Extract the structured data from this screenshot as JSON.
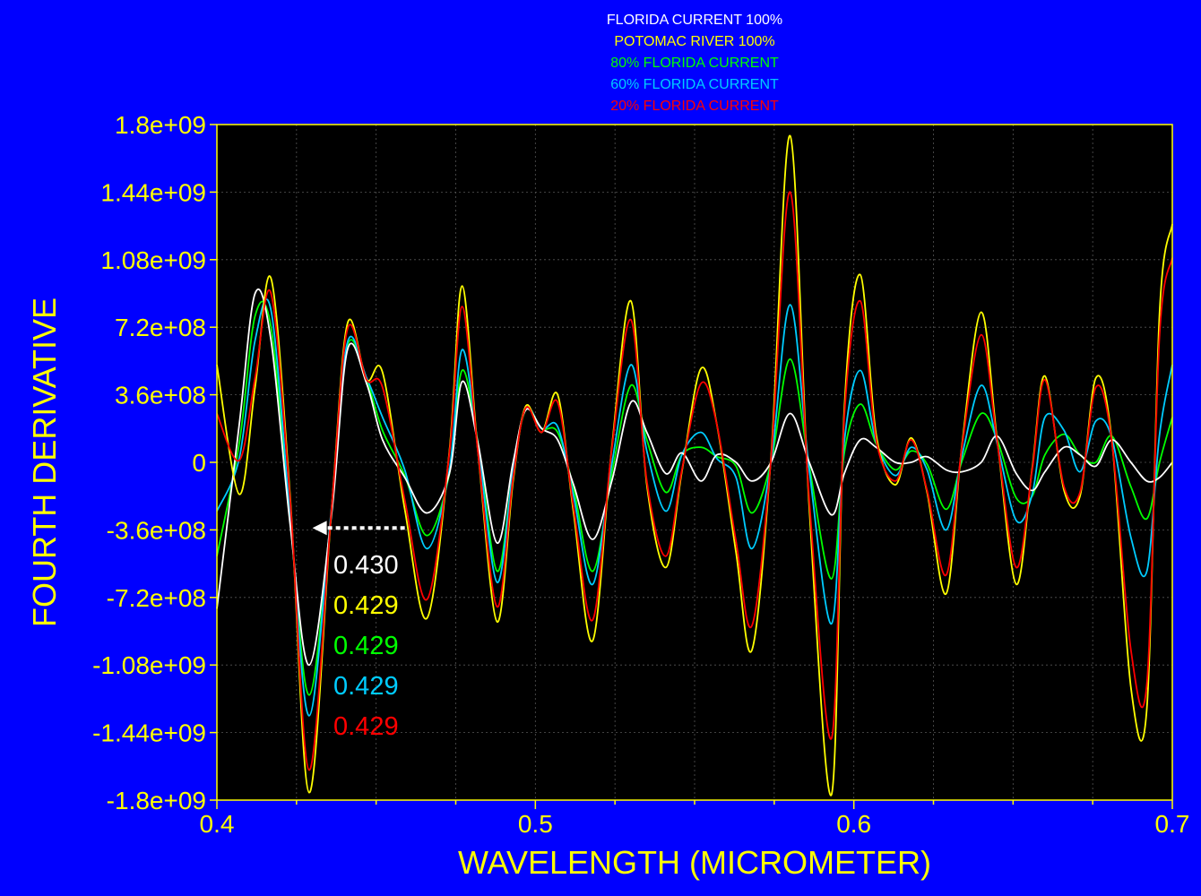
{
  "chart_data": {
    "type": "line",
    "title": "",
    "xlabel": "WAVELENGTH (MICROMETER)",
    "ylabel": "FOURTH DERIVATIVE",
    "xlim": [
      0.4,
      0.7
    ],
    "ylim": [
      -1800000000,
      1800000000
    ],
    "x_ticks": [
      0.4,
      0.5,
      0.6,
      0.7
    ],
    "x_tick_labels": [
      "0.4",
      "0.5",
      "0.6",
      "0.7"
    ],
    "y_ticks": [
      1800000000,
      1440000000,
      1080000000,
      720000000,
      360000000,
      0,
      -360000000,
      -720000000,
      -1080000000,
      -1440000000,
      -1800000000
    ],
    "y_tick_labels": [
      "1.8e+09",
      "1.44e+09",
      "1.08e+09",
      "7.2e+08",
      "3.6e+08",
      "0",
      "-3.6e+08",
      "-7.2e+08",
      "-1.08e+09",
      "-1.44e+09",
      "-1.8e+09"
    ],
    "grid": true,
    "legend_position": "top-center",
    "background": "#000000",
    "x": [
      0.4,
      0.407,
      0.412,
      0.417,
      0.423,
      0.429,
      0.436,
      0.441,
      0.447,
      0.452,
      0.459,
      0.466,
      0.473,
      0.477,
      0.482,
      0.488,
      0.493,
      0.497,
      0.502,
      0.507,
      0.512,
      0.518,
      0.524,
      0.53,
      0.535,
      0.541,
      0.546,
      0.552,
      0.557,
      0.563,
      0.568,
      0.574,
      0.58,
      0.586,
      0.593,
      0.597,
      0.602,
      0.607,
      0.613,
      0.618,
      0.623,
      0.629,
      0.634,
      0.64,
      0.645,
      0.651,
      0.656,
      0.66,
      0.666,
      0.671,
      0.676,
      0.681,
      0.687,
      0.692,
      0.696,
      0.7
    ],
    "series": [
      {
        "name": "FLORIDA CURRENT 100%",
        "color": "#ffffff",
        "values": [
          -780000000,
          200000000,
          900000000,
          650000000,
          -330000000,
          -1080000000,
          -280000000,
          600000000,
          420000000,
          120000000,
          -80000000,
          -270000000,
          -60000000,
          430000000,
          100000000,
          -430000000,
          0,
          280000000,
          180000000,
          120000000,
          -120000000,
          -410000000,
          -100000000,
          320000000,
          160000000,
          -60000000,
          50000000,
          -100000000,
          40000000,
          0,
          -100000000,
          0,
          260000000,
          0,
          -280000000,
          -60000000,
          120000000,
          80000000,
          0,
          0,
          30000000,
          -40000000,
          -50000000,
          0,
          140000000,
          -60000000,
          -150000000,
          -50000000,
          80000000,
          40000000,
          -20000000,
          120000000,
          0,
          -100000000,
          -80000000,
          0
        ]
      },
      {
        "name": "POTOMAC RIVER 100%",
        "color": "#ffff00",
        "values": [
          520000000,
          -170000000,
          400000000,
          980000000,
          -180000000,
          -1760000000,
          -250000000,
          740000000,
          440000000,
          480000000,
          -250000000,
          -830000000,
          60000000,
          940000000,
          50000000,
          -850000000,
          -100000000,
          300000000,
          160000000,
          360000000,
          -270000000,
          -950000000,
          80000000,
          860000000,
          -120000000,
          -560000000,
          -50000000,
          500000000,
          200000000,
          -480000000,
          -1000000000,
          30000000,
          1740000000,
          -240000000,
          -1770000000,
          280000000,
          1000000000,
          150000000,
          -120000000,
          130000000,
          -160000000,
          -700000000,
          100000000,
          800000000,
          120000000,
          -650000000,
          -30000000,
          460000000,
          -150000000,
          -180000000,
          450000000,
          120000000,
          -1200000000,
          -1310000000,
          800000000,
          1270000000
        ]
      },
      {
        "name": "80% FLORIDA CURRENT",
        "color": "#00ff00",
        "values": [
          -500000000,
          100000000,
          780000000,
          720000000,
          -300000000,
          -1240000000,
          -260000000,
          620000000,
          440000000,
          170000000,
          -70000000,
          -390000000,
          -60000000,
          490000000,
          100000000,
          -580000000,
          -40000000,
          280000000,
          180000000,
          160000000,
          -140000000,
          -580000000,
          -60000000,
          410000000,
          120000000,
          -160000000,
          40000000,
          80000000,
          30000000,
          -20000000,
          -270000000,
          0,
          550000000,
          -20000000,
          -620000000,
          50000000,
          310000000,
          100000000,
          -40000000,
          60000000,
          -10000000,
          -250000000,
          10000000,
          260000000,
          120000000,
          -190000000,
          -180000000,
          40000000,
          150000000,
          40000000,
          0,
          140000000,
          -130000000,
          -300000000,
          0,
          240000000
        ]
      },
      {
        "name": "60% FLORIDA CURRENT",
        "color": "#00ccff",
        "values": [
          -260000000,
          20000000,
          650000000,
          810000000,
          -280000000,
          -1350000000,
          -240000000,
          640000000,
          450000000,
          240000000,
          -40000000,
          -460000000,
          -40000000,
          600000000,
          90000000,
          -640000000,
          -40000000,
          290000000,
          180000000,
          190000000,
          -180000000,
          -650000000,
          -10000000,
          520000000,
          60000000,
          -260000000,
          40000000,
          160000000,
          20000000,
          -80000000,
          -460000000,
          0,
          840000000,
          -40000000,
          -860000000,
          110000000,
          490000000,
          110000000,
          -70000000,
          80000000,
          -40000000,
          -360000000,
          40000000,
          410000000,
          100000000,
          -310000000,
          -170000000,
          240000000,
          170000000,
          -50000000,
          220000000,
          130000000,
          -400000000,
          -580000000,
          150000000,
          520000000
        ]
      },
      {
        "name": "20% FLORIDA CURRENT",
        "color": "#ff0000",
        "values": [
          260000000,
          10000000,
          450000000,
          900000000,
          -200000000,
          -1640000000,
          -250000000,
          710000000,
          440000000,
          400000000,
          -200000000,
          -730000000,
          50000000,
          830000000,
          50000000,
          -770000000,
          -80000000,
          290000000,
          160000000,
          320000000,
          -240000000,
          -840000000,
          70000000,
          760000000,
          -100000000,
          -500000000,
          -40000000,
          420000000,
          200000000,
          -420000000,
          -870000000,
          20000000,
          1440000000,
          -200000000,
          -1470000000,
          240000000,
          860000000,
          120000000,
          -100000000,
          120000000,
          -150000000,
          -600000000,
          90000000,
          680000000,
          110000000,
          -560000000,
          -40000000,
          440000000,
          -130000000,
          -160000000,
          400000000,
          110000000,
          -1000000000,
          -1180000000,
          680000000,
          1090000000
        ]
      }
    ],
    "annotations": [
      {
        "text": "0.430",
        "color": "#ffffff"
      },
      {
        "text": "0.429",
        "color": "#ffff00"
      },
      {
        "text": "0.429",
        "color": "#00ff00"
      },
      {
        "text": "0.429",
        "color": "#00ccff"
      },
      {
        "text": "0.429",
        "color": "#ff0000"
      }
    ],
    "arrow": {
      "from_x": 0.459,
      "to_x": 0.43,
      "y": -350000000,
      "color": "#ffffff"
    }
  },
  "colors": {
    "page_background": "#0000ff",
    "plot_background": "#000000",
    "axis": "#ffff00",
    "grid": "#555555"
  }
}
